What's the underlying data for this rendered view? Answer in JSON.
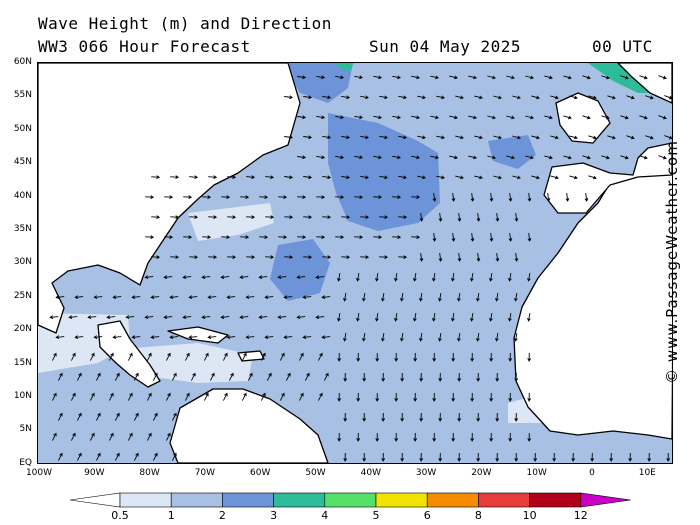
{
  "header": {
    "title": "Wave Height (m) and Direction",
    "model": "WW3 066 Hour Forecast",
    "date": "Sun 04 May 2025",
    "time": "00 UTC"
  },
  "credit": "© www.PassageWeather.com",
  "lat_labels": [
    "60N",
    "55N",
    "50N",
    "45N",
    "40N",
    "35N",
    "30N",
    "25N",
    "20N",
    "15N",
    "10N",
    "5N",
    "EQ"
  ],
  "lon_labels": [
    "100W",
    "90W",
    "80W",
    "70W",
    "60W",
    "50W",
    "40W",
    "30W",
    "20W",
    "10W",
    "0",
    "10E"
  ],
  "legend": {
    "labels": [
      "0.5",
      "1",
      "2",
      "3",
      "4",
      "5",
      "6",
      "8",
      "10",
      "12"
    ],
    "colors": [
      "#dde6f5",
      "#a8c0e4",
      "#6d94d8",
      "#2dbb9a",
      "#55e06a",
      "#f2e400",
      "#f58c00",
      "#e63c3c",
      "#b3001a",
      "#c800c8"
    ]
  },
  "colors": {
    "land": "#ffffff",
    "ocean_default": "#a8c0e4",
    "calm": "#dde6f5",
    "moderate": "#6d94d8",
    "high": "#2dbb9a",
    "coast": "#000000",
    "borders": "#999999"
  }
}
